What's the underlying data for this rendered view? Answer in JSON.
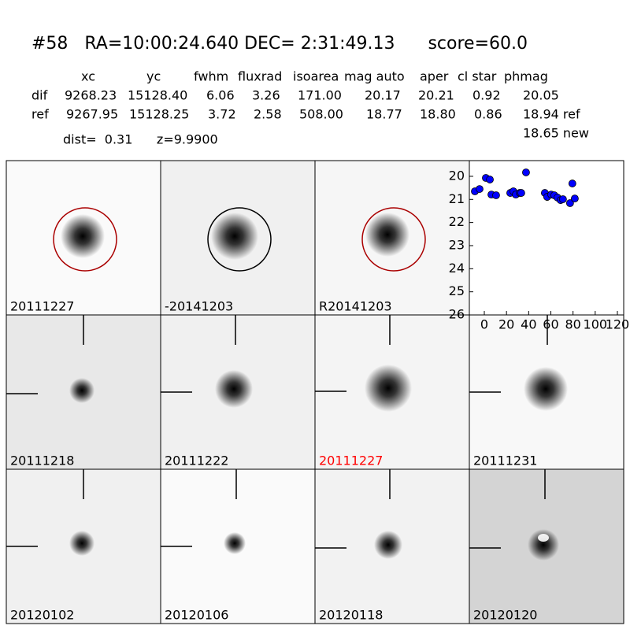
{
  "header": {
    "title": "#58   RA=10:00:24.640 DEC= 2:31:49.13      score=60.0",
    "distance": "dist=  0.31      z=9.9900"
  },
  "table": {
    "headers": [
      "xc",
      "yc",
      "fwhm",
      "fluxrad",
      "isoarea",
      "mag auto",
      "aper",
      "cl star",
      "phmag"
    ],
    "rows": [
      [
        "dif",
        "9268.23",
        "15128.40",
        "6.06",
        "3.26",
        "171.00",
        "20.17",
        "20.21",
        "0.92",
        "20.05"
      ],
      [
        "ref",
        "9267.95",
        "15128.25",
        "3.72",
        "2.58",
        "508.00",
        "18.77",
        "18.80",
        "0.86",
        "18.94 ref"
      ]
    ],
    "note": "18.65 new"
  },
  "panels": [
    {
      "label": "20111227",
      "label_color": "#000000"
    },
    {
      "label": "-20141203",
      "label_color": "#000000"
    },
    {
      "label": "R20141203",
      "label_color": "#000000"
    },
    {
      "label": "20111218",
      "label_color": "#000000"
    },
    {
      "label": "20111222",
      "label_color": "#000000"
    },
    {
      "label": "20111227",
      "label_color": "#ff0000"
    },
    {
      "label": "20111231",
      "label_color": "#000000"
    },
    {
      "label": "20120102",
      "label_color": "#000000"
    },
    {
      "label": "20120106",
      "label_color": "#000000"
    },
    {
      "label": "20120118",
      "label_color": "#000000"
    },
    {
      "label": "20120120",
      "label_color": "#000000"
    }
  ],
  "chart_data": {
    "type": "scatter",
    "color": "#0000ff",
    "x": [
      -8.5,
      -4.3,
      1.4,
      5.0,
      6.4,
      10.6,
      23.4,
      26.2,
      28.4,
      32.0,
      33.3,
      37.6,
      54.6,
      56.7,
      60.3,
      63.1,
      66.0,
      68.8,
      70.9,
      77.3,
      79.4,
      81.6
    ],
    "values": [
      20.65,
      20.55,
      20.07,
      20.14,
      20.79,
      20.82,
      20.72,
      20.65,
      20.79,
      20.72,
      20.72,
      19.83,
      20.72,
      20.89,
      20.79,
      20.82,
      20.92,
      21.03,
      20.99,
      21.16,
      20.31,
      20.96
    ],
    "xlim": [
      -13.5,
      125.7
    ],
    "ylim": [
      26,
      19.32
    ],
    "xticks": [
      0,
      20,
      40,
      60,
      80,
      100,
      120
    ],
    "yticks": [
      20,
      21,
      22,
      23,
      24,
      25,
      26
    ]
  }
}
